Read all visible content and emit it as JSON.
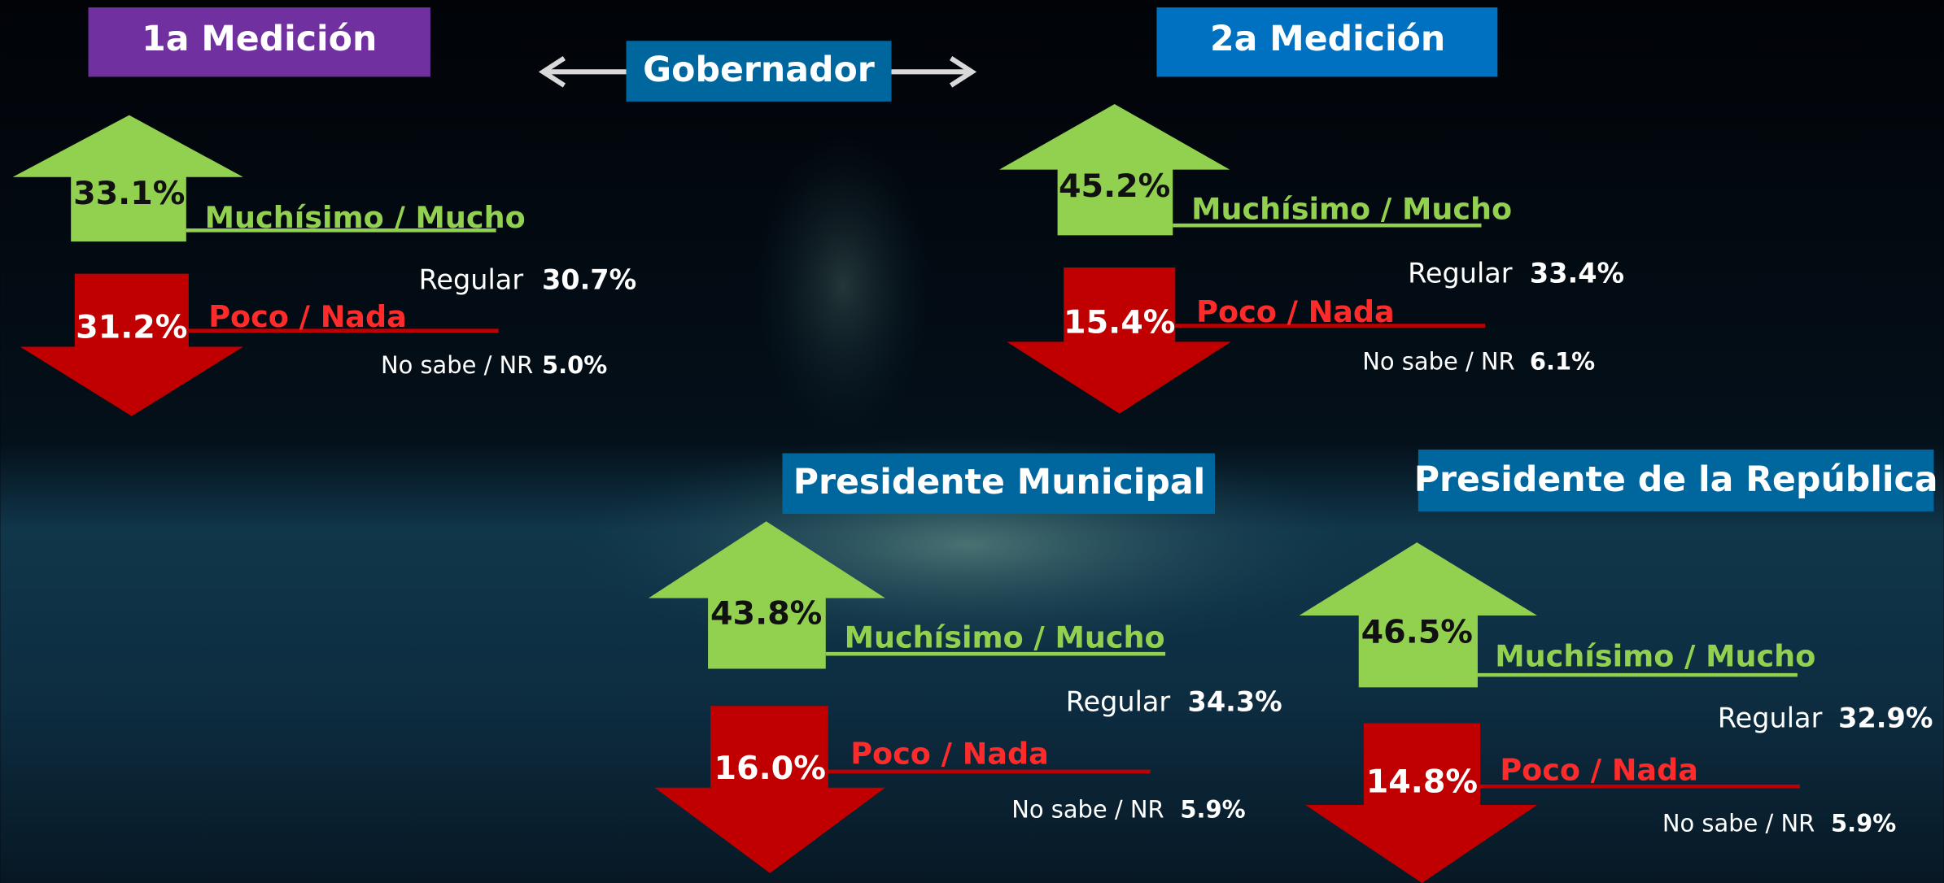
{
  "header": {
    "first_measure": "1a Medición",
    "second_measure": "2a Medición",
    "office": "Gobernador"
  },
  "panels": [
    {
      "high_value": "33.1%",
      "high_label": "Muchísimo / Mucho",
      "low_value": "31.2%",
      "low_label": "Poco / Nada",
      "regular_label": "Regular",
      "regular_value": "30.7%",
      "nr_label": "No sabe / NR",
      "nr_value": "5.0%"
    },
    {
      "high_value": "45.2%",
      "high_label": "Muchísimo / Mucho",
      "low_value": "15.4%",
      "low_label": "Poco / Nada",
      "regular_label": "Regular",
      "regular_value": "33.4%",
      "nr_label": "No sabe / NR",
      "nr_value": "6.1%"
    },
    {
      "title": "Presidente Municipal",
      "high_value": "43.8%",
      "high_label": "Muchísimo / Mucho",
      "low_value": "16.0%",
      "low_label": "Poco / Nada",
      "regular_label": "Regular",
      "regular_value": "34.3%",
      "nr_label": "No sabe / NR",
      "nr_value": "5.9%"
    },
    {
      "title": "Presidente de la República",
      "high_value": "46.5%",
      "high_label": "Muchísimo / Mucho",
      "low_value": "14.8%",
      "low_label": "Poco / Nada",
      "regular_label": "Regular",
      "regular_value": "32.9%",
      "nr_label": "No sabe / NR",
      "nr_value": "5.9%"
    }
  ]
}
